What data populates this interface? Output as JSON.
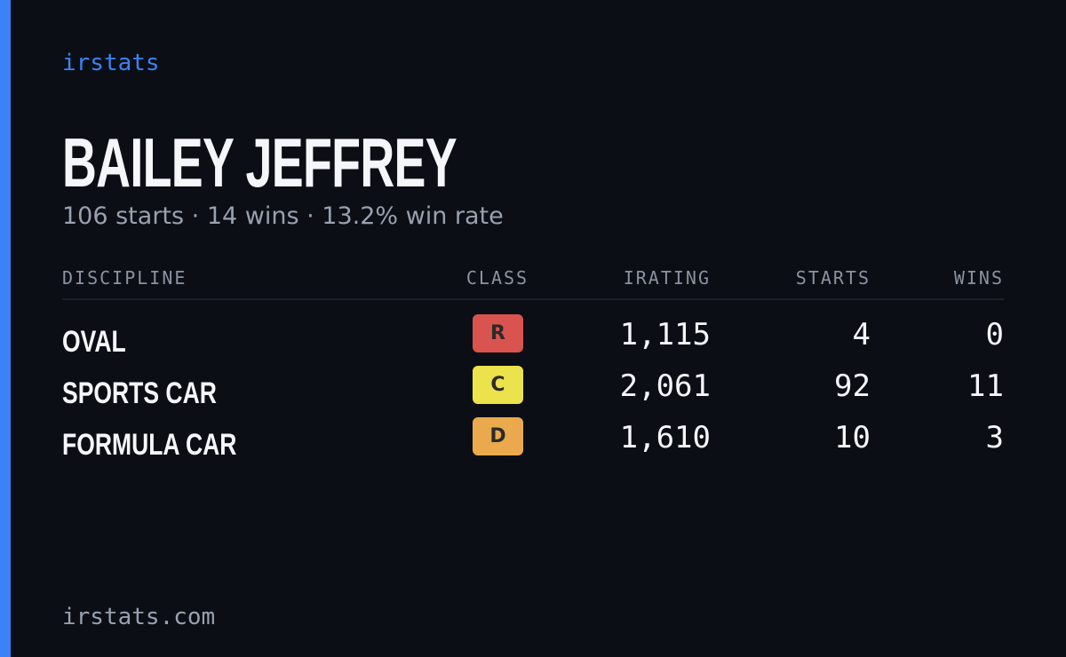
{
  "brand": "irstats",
  "profile": {
    "name": "BAILEY JEFFREY",
    "summary": "106 starts · 14 wins · 13.2% win rate"
  },
  "table": {
    "headers": [
      "DISCIPLINE",
      "CLASS",
      "IRATING",
      "STARTS",
      "WINS"
    ],
    "rows": [
      [
        "OVAL",
        "R",
        "1,115",
        "4",
        "0"
      ],
      [
        "SPORTS CAR",
        "C",
        "2,061",
        "92",
        "11"
      ],
      [
        "FORMULA CAR",
        "D",
        "1,610",
        "10",
        "3"
      ]
    ],
    "badge_colors": [
      "#d9534f",
      "#ece24c",
      "#eaa94c"
    ]
  },
  "footer": "irstats.com"
}
